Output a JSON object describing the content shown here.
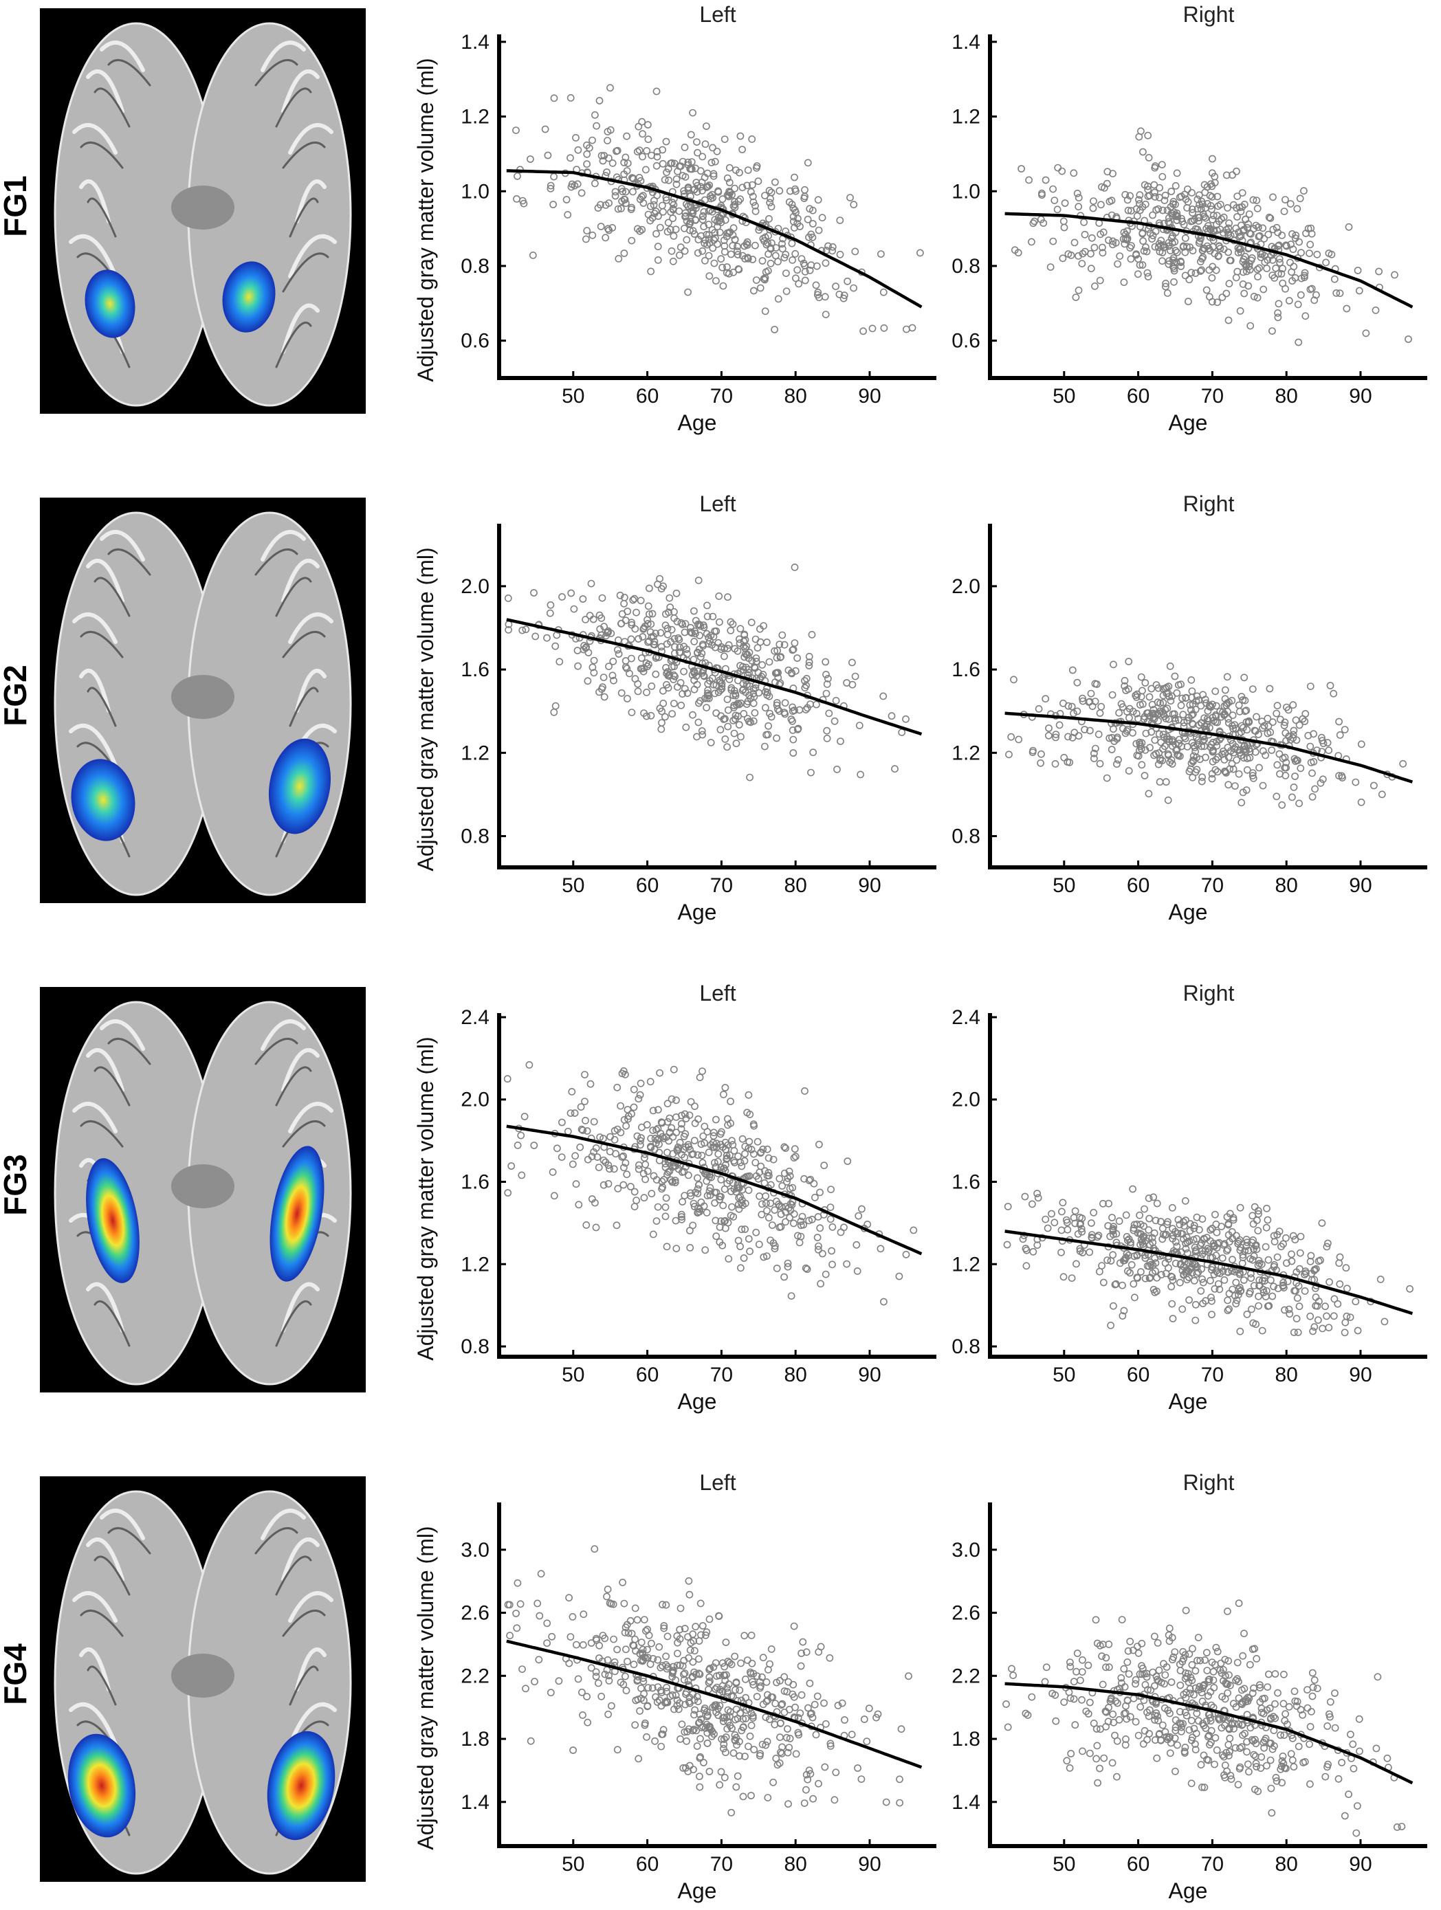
{
  "figure": {
    "rows": [
      {
        "label": "FG1",
        "brain_icon": "brain-axial-activation-icon",
        "panels": [
          {
            "title": "Left",
            "xlabel": "Age",
            "ylabel": "Adjusted gray matter volume (ml)",
            "yticks": [
              "0.6",
              "0.8",
              "1.0",
              "1.2",
              "1.4"
            ],
            "xticks": [
              "50",
              "60",
              "70",
              "80",
              "90"
            ]
          },
          {
            "title": "Right",
            "xlabel": "Age",
            "ylabel": "",
            "yticks": [
              "0.6",
              "0.8",
              "1.0",
              "1.2",
              "1.4"
            ],
            "xticks": [
              "50",
              "60",
              "70",
              "80",
              "90"
            ]
          }
        ]
      },
      {
        "label": "FG2",
        "brain_icon": "brain-axial-activation-icon",
        "panels": [
          {
            "title": "Left",
            "xlabel": "Age",
            "ylabel": "Adjusted gray matter volume (ml)",
            "yticks": [
              "0.8",
              "1.2",
              "1.6",
              "2.0"
            ],
            "xticks": [
              "50",
              "60",
              "70",
              "80",
              "90"
            ]
          },
          {
            "title": "Right",
            "xlabel": "Age",
            "ylabel": "",
            "yticks": [
              "0.8",
              "1.2",
              "1.6",
              "2.0"
            ],
            "xticks": [
              "50",
              "60",
              "70",
              "80",
              "90"
            ]
          }
        ]
      },
      {
        "label": "FG3",
        "brain_icon": "brain-axial-activation-icon",
        "panels": [
          {
            "title": "Left",
            "xlabel": "Age",
            "ylabel": "Adjusted gray matter volume (ml)",
            "yticks": [
              "0.8",
              "1.2",
              "1.6",
              "2.0",
              "2.4"
            ],
            "xticks": [
              "50",
              "60",
              "70",
              "80",
              "90"
            ]
          },
          {
            "title": "Right",
            "xlabel": "Age",
            "ylabel": "",
            "yticks": [
              "0.8",
              "1.2",
              "1.6",
              "2.0",
              "2.4"
            ],
            "xticks": [
              "50",
              "60",
              "70",
              "80",
              "90"
            ]
          }
        ]
      },
      {
        "label": "FG4",
        "brain_icon": "brain-axial-activation-icon",
        "panels": [
          {
            "title": "Left",
            "xlabel": "Age",
            "ylabel": "Adjusted gray matter volume (ml)",
            "yticks": [
              "1.4",
              "1.8",
              "2.2",
              "2.6",
              "3.0"
            ],
            "xticks": [
              "50",
              "60",
              "70",
              "80",
              "90"
            ]
          },
          {
            "title": "Right",
            "xlabel": "Age",
            "ylabel": "",
            "yticks": [
              "1.4",
              "1.8",
              "2.2",
              "2.6",
              "3.0"
            ],
            "xticks": [
              "50",
              "60",
              "70",
              "80",
              "90"
            ]
          }
        ]
      }
    ]
  },
  "colors": {
    "points": "#808080",
    "fit_line": "#000000",
    "axes": "#000000",
    "brain_background": "#000000"
  },
  "chart_data": [
    {
      "type": "scatter",
      "region": "FG1",
      "title": "Left",
      "xlabel": "Age",
      "ylabel": "Adjusted gray matter volume (ml)",
      "xlim": [
        40,
        99
      ],
      "ylim": [
        0.5,
        1.42
      ],
      "n_points": 520,
      "x_range": [
        41,
        97
      ],
      "y_range": [
        0.62,
        1.29
      ],
      "fit": {
        "x": [
          41,
          50,
          60,
          70,
          80,
          90,
          97
        ],
        "y": [
          1.055,
          1.05,
          1.01,
          0.95,
          0.87,
          0.77,
          0.69
        ]
      }
    },
    {
      "type": "scatter",
      "region": "FG1",
      "title": "Right",
      "xlabel": "Age",
      "ylabel": "",
      "xlim": [
        40,
        99
      ],
      "ylim": [
        0.5,
        1.42
      ],
      "n_points": 520,
      "x_range": [
        42,
        97
      ],
      "y_range": [
        0.59,
        1.18
      ],
      "fit": {
        "x": [
          42,
          50,
          60,
          70,
          80,
          90,
          97
        ],
        "y": [
          0.94,
          0.935,
          0.915,
          0.88,
          0.83,
          0.76,
          0.69
        ]
      }
    },
    {
      "type": "scatter",
      "region": "FG2",
      "title": "Left",
      "xlabel": "Age",
      "ylabel": "Adjusted gray matter volume (ml)",
      "xlim": [
        40,
        99
      ],
      "ylim": [
        0.65,
        2.3
      ],
      "n_points": 520,
      "x_range": [
        41,
        97
      ],
      "y_range": [
        1.08,
        2.15
      ],
      "fit": {
        "x": [
          41,
          50,
          60,
          70,
          80,
          90,
          97
        ],
        "y": [
          1.84,
          1.77,
          1.69,
          1.59,
          1.49,
          1.37,
          1.29
        ]
      }
    },
    {
      "type": "scatter",
      "region": "FG2",
      "title": "Right",
      "xlabel": "Age",
      "ylabel": "",
      "xlim": [
        40,
        99
      ],
      "ylim": [
        0.65,
        2.3
      ],
      "n_points": 520,
      "x_range": [
        42,
        97
      ],
      "y_range": [
        0.87,
        1.74
      ],
      "fit": {
        "x": [
          42,
          50,
          60,
          70,
          80,
          90,
          97
        ],
        "y": [
          1.39,
          1.37,
          1.34,
          1.29,
          1.23,
          1.14,
          1.06
        ]
      }
    },
    {
      "type": "scatter",
      "region": "FG3",
      "title": "Left",
      "xlabel": "Age",
      "ylabel": "Adjusted gray matter volume (ml)",
      "xlim": [
        40,
        99
      ],
      "ylim": [
        0.75,
        2.42
      ],
      "n_points": 520,
      "x_range": [
        41,
        97
      ],
      "y_range": [
        0.97,
        2.27
      ],
      "fit": {
        "x": [
          41,
          50,
          60,
          70,
          80,
          90,
          97
        ],
        "y": [
          1.87,
          1.82,
          1.74,
          1.64,
          1.52,
          1.36,
          1.25
        ]
      }
    },
    {
      "type": "scatter",
      "region": "FG3",
      "title": "Right",
      "xlabel": "Age",
      "ylabel": "",
      "xlim": [
        40,
        99
      ],
      "ylim": [
        0.75,
        2.42
      ],
      "n_points": 520,
      "x_range": [
        42,
        97
      ],
      "y_range": [
        0.86,
        1.76
      ],
      "fit": {
        "x": [
          42,
          50,
          60,
          70,
          80,
          90,
          97
        ],
        "y": [
          1.36,
          1.32,
          1.27,
          1.21,
          1.14,
          1.04,
          0.96
        ]
      }
    },
    {
      "type": "scatter",
      "region": "FG4",
      "title": "Left",
      "xlabel": "Age",
      "ylabel": "Adjusted gray matter volume (ml)",
      "xlim": [
        40,
        99
      ],
      "ylim": [
        1.12,
        3.3
      ],
      "n_points": 520,
      "x_range": [
        41,
        97
      ],
      "y_range": [
        1.33,
        3.03
      ],
      "fit": {
        "x": [
          41,
          50,
          60,
          70,
          80,
          90,
          97
        ],
        "y": [
          2.42,
          2.32,
          2.2,
          2.06,
          1.91,
          1.74,
          1.62
        ]
      }
    },
    {
      "type": "scatter",
      "region": "FG4",
      "title": "Right",
      "xlabel": "Age",
      "ylabel": "",
      "xlim": [
        40,
        99
      ],
      "ylim": [
        1.12,
        3.3
      ],
      "n_points": 520,
      "x_range": [
        42,
        97
      ],
      "y_range": [
        1.19,
        2.74
      ],
      "fit": {
        "x": [
          42,
          50,
          60,
          70,
          80,
          90,
          97
        ],
        "y": [
          2.15,
          2.13,
          2.08,
          1.98,
          1.86,
          1.68,
          1.52
        ]
      }
    }
  ]
}
